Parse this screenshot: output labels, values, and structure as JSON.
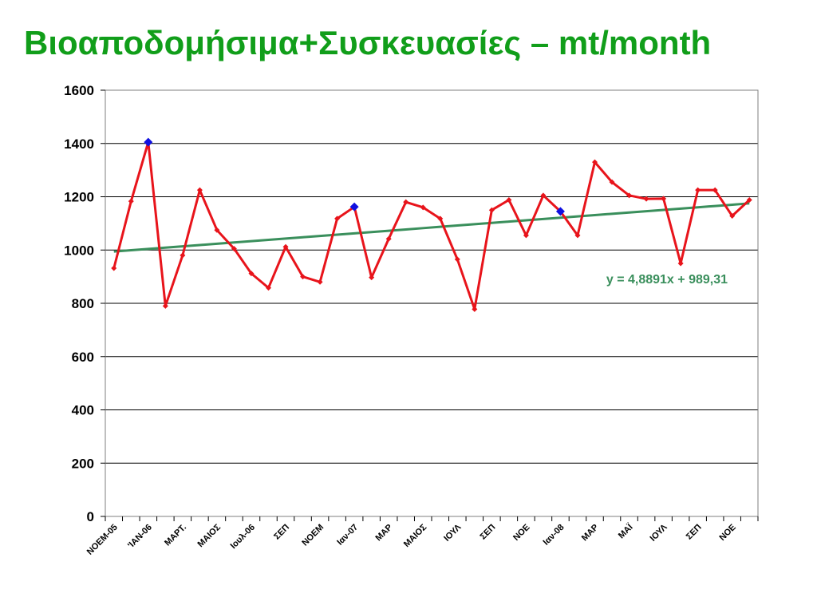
{
  "title": "Βιοαποδομήσιμα+Συσκευασίες – mt/month",
  "chart_data": {
    "type": "line",
    "title": "Βιοαποδομήσιμα+Συσκευασίες – mt/month",
    "xlabel": "",
    "ylabel": "",
    "ylim": [
      0,
      1600
    ],
    "yticks": [
      0,
      200,
      400,
      600,
      800,
      1000,
      1200,
      1400,
      1600
    ],
    "grid": true,
    "legend": "none",
    "x_tick_labels": [
      "NOEM-05",
      "'IAN-06",
      "ΜΑΡΤ.",
      "ΜΑΙΟΣ",
      "Ιουλ-06",
      "ΣΕΠ",
      "ΝΟΕΜ",
      "Ιαν-07",
      "ΜΑΡ",
      "ΜΑΙΟΣ",
      "ΙΟΥΛ",
      "ΣΕΠ",
      "ΝΟΕ",
      "Ιαν-08",
      "ΜΑΡ",
      "ΜΑΪ",
      "ΙΟΥΛ",
      "ΣΕΠ",
      "ΝΟΕ"
    ],
    "series": [
      {
        "values": [
          932,
          1183,
          1405,
          790,
          980,
          1225,
          1075,
          1005,
          912,
          858,
          1012,
          900,
          880,
          1118,
          1162,
          897,
          1042,
          1180,
          1160,
          1118,
          965,
          778,
          1150,
          1188,
          1055,
          1205,
          1145,
          1055,
          1330,
          1255,
          1205,
          1192,
          1193,
          950,
          1225,
          1225,
          1128,
          1188
        ],
        "color": "#e8141b",
        "highlight_indices": [
          2,
          14,
          26
        ],
        "highlight_color": "#1010e0"
      }
    ],
    "trendline": {
      "slope": 4.8891,
      "intercept": 989.31,
      "color": "#3a8f5c",
      "label": "y = 4,8891x + 989,31"
    }
  }
}
